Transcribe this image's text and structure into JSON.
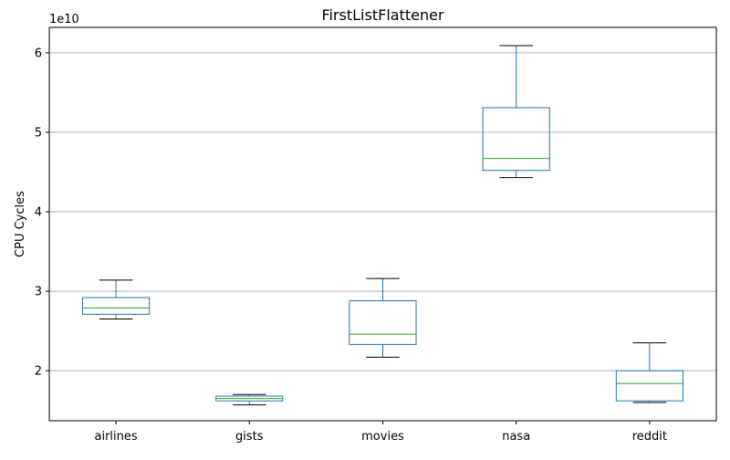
{
  "chart_data": {
    "type": "box",
    "title": "FirstListFlattener",
    "xlabel": "",
    "ylabel": "CPU Cycles",
    "y_offset_label": "1e10",
    "y_scale_factor": 10000000000,
    "ylim": [
      1.37,
      6.32
    ],
    "yticks": [
      2,
      3,
      4,
      5,
      6
    ],
    "grid": "y",
    "colors": {
      "box": "#1f77b4",
      "median": "#2ca02c",
      "cap": "#000000",
      "grid": "#b0b0b0"
    },
    "categories": [
      "airlines",
      "gists",
      "movies",
      "nasa",
      "reddit"
    ],
    "boxes": [
      {
        "label": "airlines",
        "whislo": 2.65,
        "q1": 2.71,
        "med": 2.79,
        "q3": 2.92,
        "whishi": 3.14
      },
      {
        "label": "gists",
        "whislo": 1.57,
        "q1": 1.62,
        "med": 1.65,
        "q3": 1.68,
        "whishi": 1.7
      },
      {
        "label": "movies",
        "whislo": 2.17,
        "q1": 2.33,
        "med": 2.46,
        "q3": 2.88,
        "whishi": 3.16
      },
      {
        "label": "nasa",
        "whislo": 4.43,
        "q1": 4.52,
        "med": 4.67,
        "q3": 5.31,
        "whishi": 6.09
      },
      {
        "label": "reddit",
        "whislo": 1.6,
        "q1": 1.62,
        "med": 1.84,
        "q3": 2.0,
        "whishi": 2.35
      }
    ]
  }
}
